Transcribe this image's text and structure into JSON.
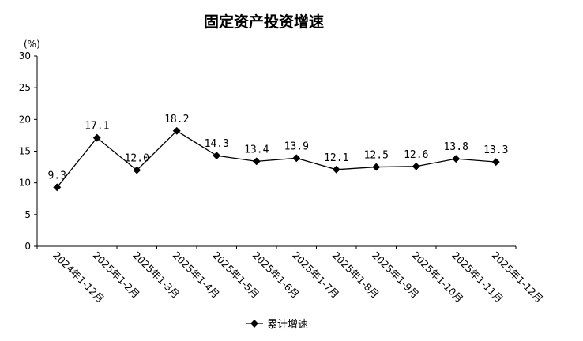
{
  "chart_data": {
    "type": "line",
    "title": "固定资产投资增速",
    "unit": "(%)",
    "categories": [
      "2024年1-12月",
      "2025年1-2月",
      "2025年1-3月",
      "2025年1-4月",
      "2025年1-5月",
      "2025年1-6月",
      "2025年1-7月",
      "2025年1-8月",
      "2025年1-9月",
      "2025年1-10月",
      "2025年1-11月",
      "2025年1-12月"
    ],
    "series": [
      {
        "name": "累计增速",
        "values": [
          9.3,
          17.1,
          12.0,
          18.2,
          14.3,
          13.4,
          13.9,
          12.1,
          12.5,
          12.6,
          13.8,
          13.3
        ]
      }
    ],
    "ylim": [
      0,
      30
    ],
    "yticks": [
      0,
      5,
      10,
      15,
      20,
      25,
      30
    ],
    "grid": false,
    "legend": "bottom",
    "colors": {
      "line": "#000000",
      "marker": "#000000"
    }
  }
}
